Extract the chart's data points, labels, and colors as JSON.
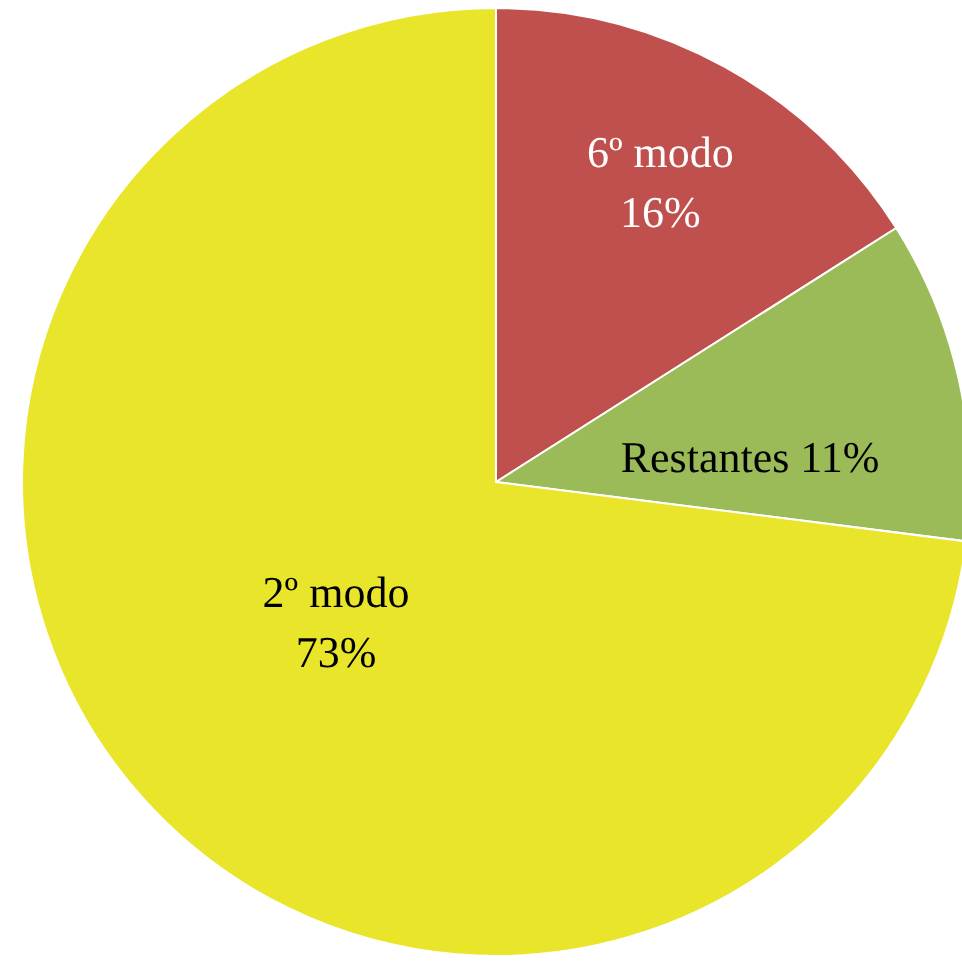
{
  "chart_data": {
    "type": "pie",
    "categories": [
      "6º modo",
      "Restantes",
      "2º modo"
    ],
    "values": [
      16,
      11,
      73
    ],
    "value_labels": [
      "16%",
      "11%",
      "73%"
    ],
    "colors": [
      "#c0504d",
      "#9bbb59",
      "#e8e52a"
    ],
    "legend": false
  }
}
